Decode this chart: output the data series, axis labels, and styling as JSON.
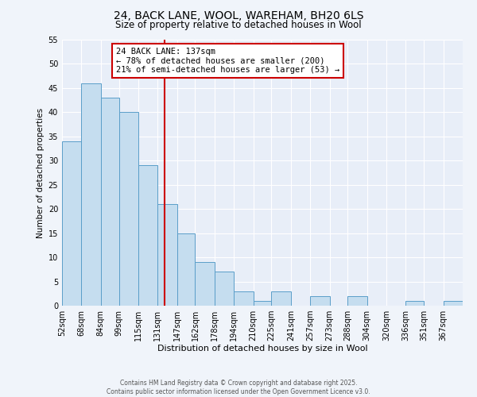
{
  "title": "24, BACK LANE, WOOL, WAREHAM, BH20 6LS",
  "subtitle": "Size of property relative to detached houses in Wool",
  "xlabel": "Distribution of detached houses by size in Wool",
  "ylabel": "Number of detached properties",
  "bin_labels": [
    "52sqm",
    "68sqm",
    "84sqm",
    "99sqm",
    "115sqm",
    "131sqm",
    "147sqm",
    "162sqm",
    "178sqm",
    "194sqm",
    "210sqm",
    "225sqm",
    "241sqm",
    "257sqm",
    "273sqm",
    "288sqm",
    "304sqm",
    "320sqm",
    "336sqm",
    "351sqm",
    "367sqm"
  ],
  "bar_values": [
    34,
    46,
    43,
    40,
    29,
    21,
    15,
    9,
    7,
    3,
    1,
    3,
    0,
    2,
    0,
    2,
    0,
    0,
    1,
    0,
    1
  ],
  "bar_color": "#c5ddef",
  "bar_edge_color": "#5a9ec9",
  "vline_x": 137,
  "vline_label": "24 BACK LANE: 137sqm",
  "annotation_line1": "← 78% of detached houses are smaller (200)",
  "annotation_line2": "21% of semi-detached houses are larger (53) →",
  "vline_color": "#cc0000",
  "annotation_box_color": "#cc0000",
  "ylim": [
    0,
    55
  ],
  "yticks": [
    0,
    5,
    10,
    15,
    20,
    25,
    30,
    35,
    40,
    45,
    50,
    55
  ],
  "background_color": "#f0f4fa",
  "plot_bg_color": "#e8eef8",
  "footer1": "Contains HM Land Registry data © Crown copyright and database right 2025.",
  "footer2": "Contains public sector information licensed under the Open Government Licence v3.0.",
  "grid_color": "#ffffff",
  "title_fontsize": 10,
  "subtitle_fontsize": 8.5,
  "xlabel_fontsize": 8,
  "ylabel_fontsize": 7.5,
  "tick_fontsize": 7,
  "annotation_fontsize": 7.5,
  "footer_fontsize": 5.5
}
